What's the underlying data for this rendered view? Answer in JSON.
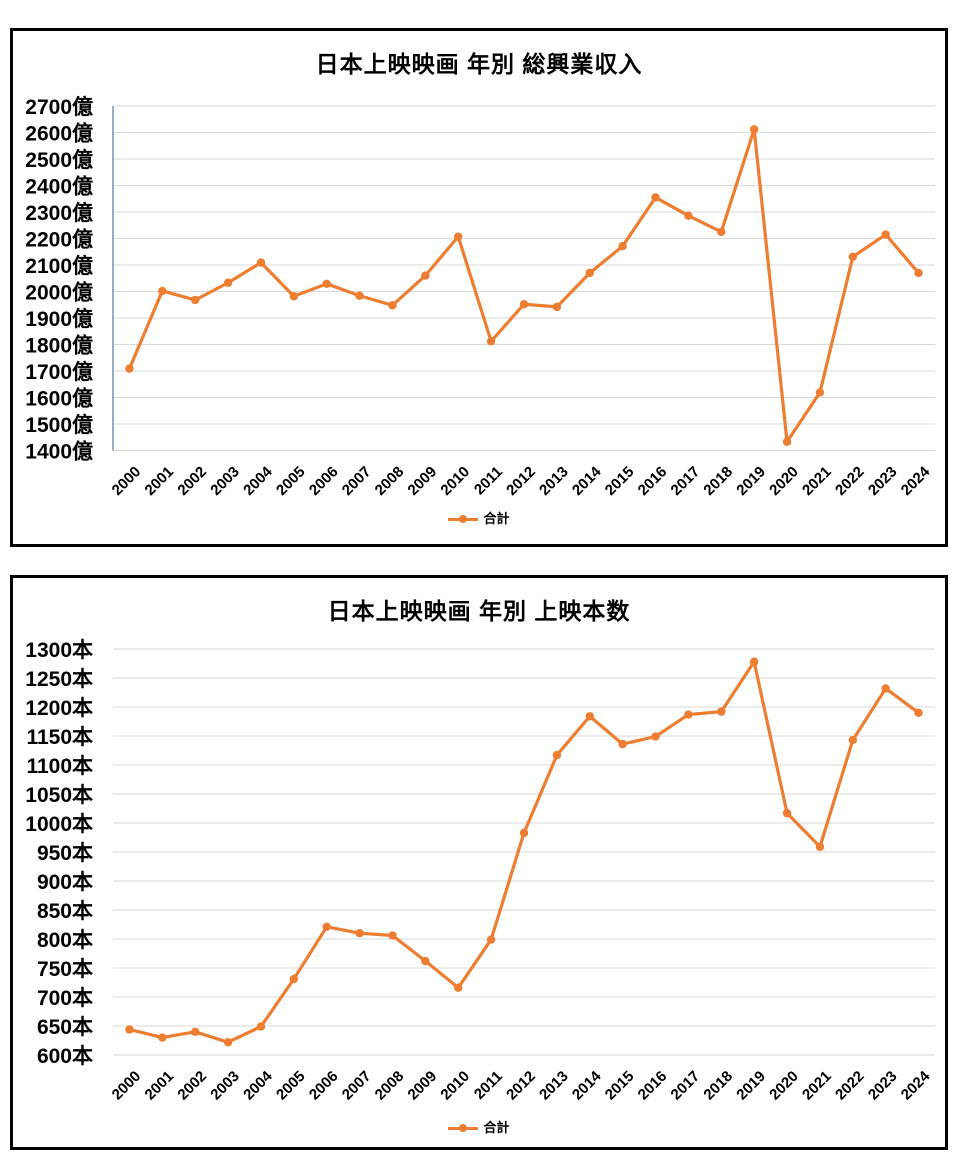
{
  "colors": {
    "line": "#ED7D31",
    "grid": "#D9D9D9",
    "axis_line": "#7592AD",
    "text": "#000000",
    "frame_border": "#000000"
  },
  "chart_data": [
    {
      "type": "line",
      "title": "日本上映映画 年別 総興業収入",
      "categories": [
        "2000",
        "2001",
        "2002",
        "2003",
        "2004",
        "2005",
        "2006",
        "2007",
        "2008",
        "2009",
        "2010",
        "2011",
        "2012",
        "2013",
        "2014",
        "2015",
        "2016",
        "2017",
        "2018",
        "2019",
        "2020",
        "2021",
        "2022",
        "2023",
        "2024"
      ],
      "series": [
        {
          "name": "合計",
          "values": [
            1709,
            2002,
            1968,
            2033,
            2109,
            1982,
            2029,
            1984,
            1948,
            2060,
            2207,
            1812,
            1952,
            1942,
            2070,
            2171,
            2355,
            2286,
            2225,
            2612,
            1433,
            1619,
            2131,
            2215,
            2070
          ]
        }
      ],
      "unit": "億",
      "ylim": [
        1400,
        2700
      ],
      "ystep": 100,
      "grid": true,
      "y_axis_line": true,
      "legend_position": "bottom"
    },
    {
      "type": "line",
      "title": "日本上映映画 年別 上映本数",
      "categories": [
        "2000",
        "2001",
        "2002",
        "2003",
        "2004",
        "2005",
        "2006",
        "2007",
        "2008",
        "2009",
        "2010",
        "2011",
        "2012",
        "2013",
        "2014",
        "2015",
        "2016",
        "2017",
        "2018",
        "2019",
        "2020",
        "2021",
        "2022",
        "2023",
        "2024"
      ],
      "series": [
        {
          "name": "合計",
          "values": [
            644,
            630,
            640,
            622,
            649,
            731,
            821,
            810,
            806,
            762,
            716,
            799,
            983,
            1117,
            1184,
            1136,
            1149,
            1187,
            1192,
            1278,
            1017,
            959,
            1143,
            1232,
            1190
          ]
        }
      ],
      "unit": "本",
      "ylim": [
        600,
        1300
      ],
      "ystep": 50,
      "grid": true,
      "y_axis_line": false,
      "legend_position": "bottom"
    }
  ]
}
